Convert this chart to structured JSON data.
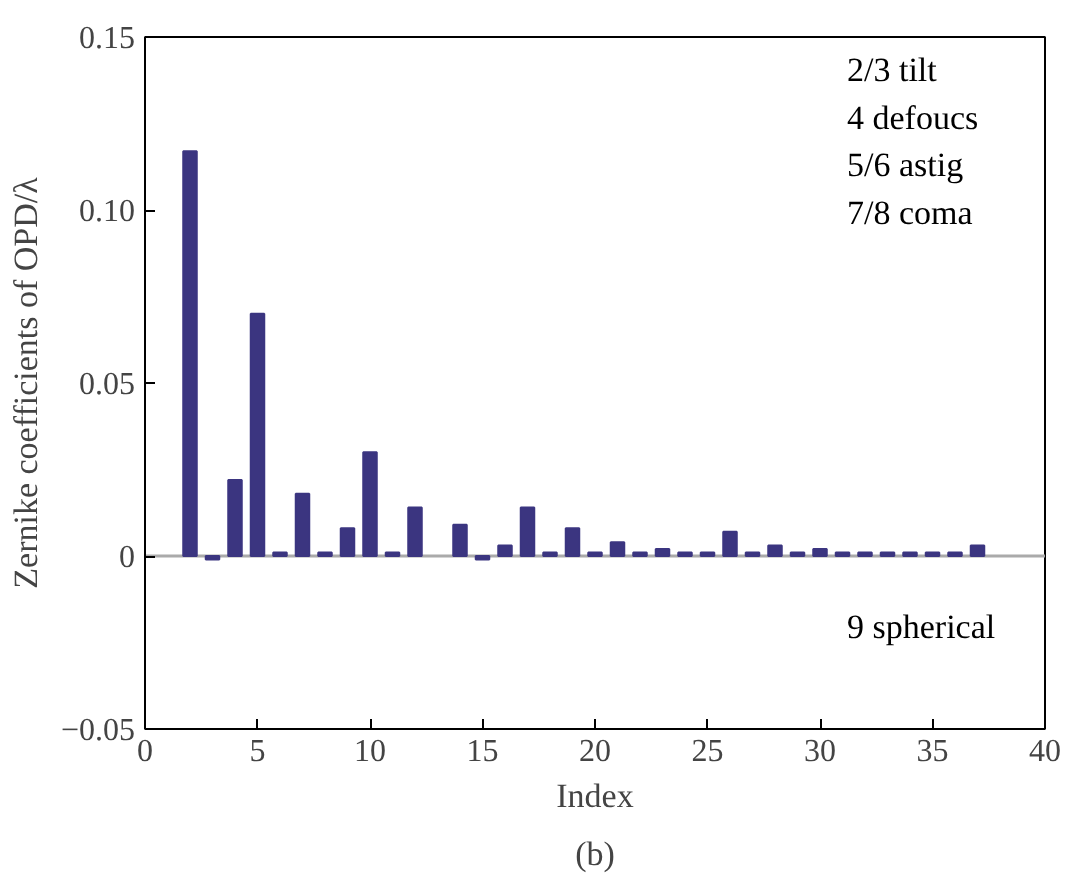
{
  "chart_data": {
    "type": "bar",
    "x": [
      2,
      3,
      4,
      5,
      6,
      7,
      8,
      9,
      10,
      11,
      12,
      13,
      14,
      15,
      16,
      17,
      18,
      19,
      20,
      21,
      22,
      23,
      24,
      25,
      26,
      27,
      28,
      29,
      30,
      31,
      32,
      33,
      34,
      35,
      36,
      37
    ],
    "values": [
      0.117,
      -0.001,
      0.022,
      0.07,
      0.001,
      0.018,
      0.001,
      0.008,
      0.03,
      0.001,
      0.014,
      null,
      0.009,
      -0.001,
      0.003,
      0.014,
      0.001,
      0.008,
      0.001,
      0.004,
      0.001,
      0.002,
      0.001,
      0.001,
      0.007,
      0.001,
      0.003,
      0.001,
      0.002,
      0.001,
      0.001,
      0.001,
      0.001,
      0.001,
      0.001,
      0.003
    ],
    "color": "#3b3580",
    "xlabel": "Index",
    "ylabel": "Zernike coefficients of OPD/λ",
    "xlim": [
      0,
      40
    ],
    "xticks": [
      0,
      5,
      10,
      15,
      20,
      25,
      30,
      35,
      40
    ],
    "ylim": [
      -0.05,
      0.15
    ],
    "yticks": [
      {
        "value": -0.05,
        "label": "−0.05"
      },
      0,
      0.05,
      {
        "value": 0.1,
        "label": "0.10"
      },
      0.15
    ],
    "ref_lines": [
      {
        "axis": "y",
        "value": 0,
        "color": "#aaaaaa"
      }
    ],
    "annotations": [
      "2/3 tilt",
      "4 defoucs",
      "5/6 astig",
      "7/8 coma",
      "9 spherical",
      "(b)"
    ],
    "grid": false
  }
}
